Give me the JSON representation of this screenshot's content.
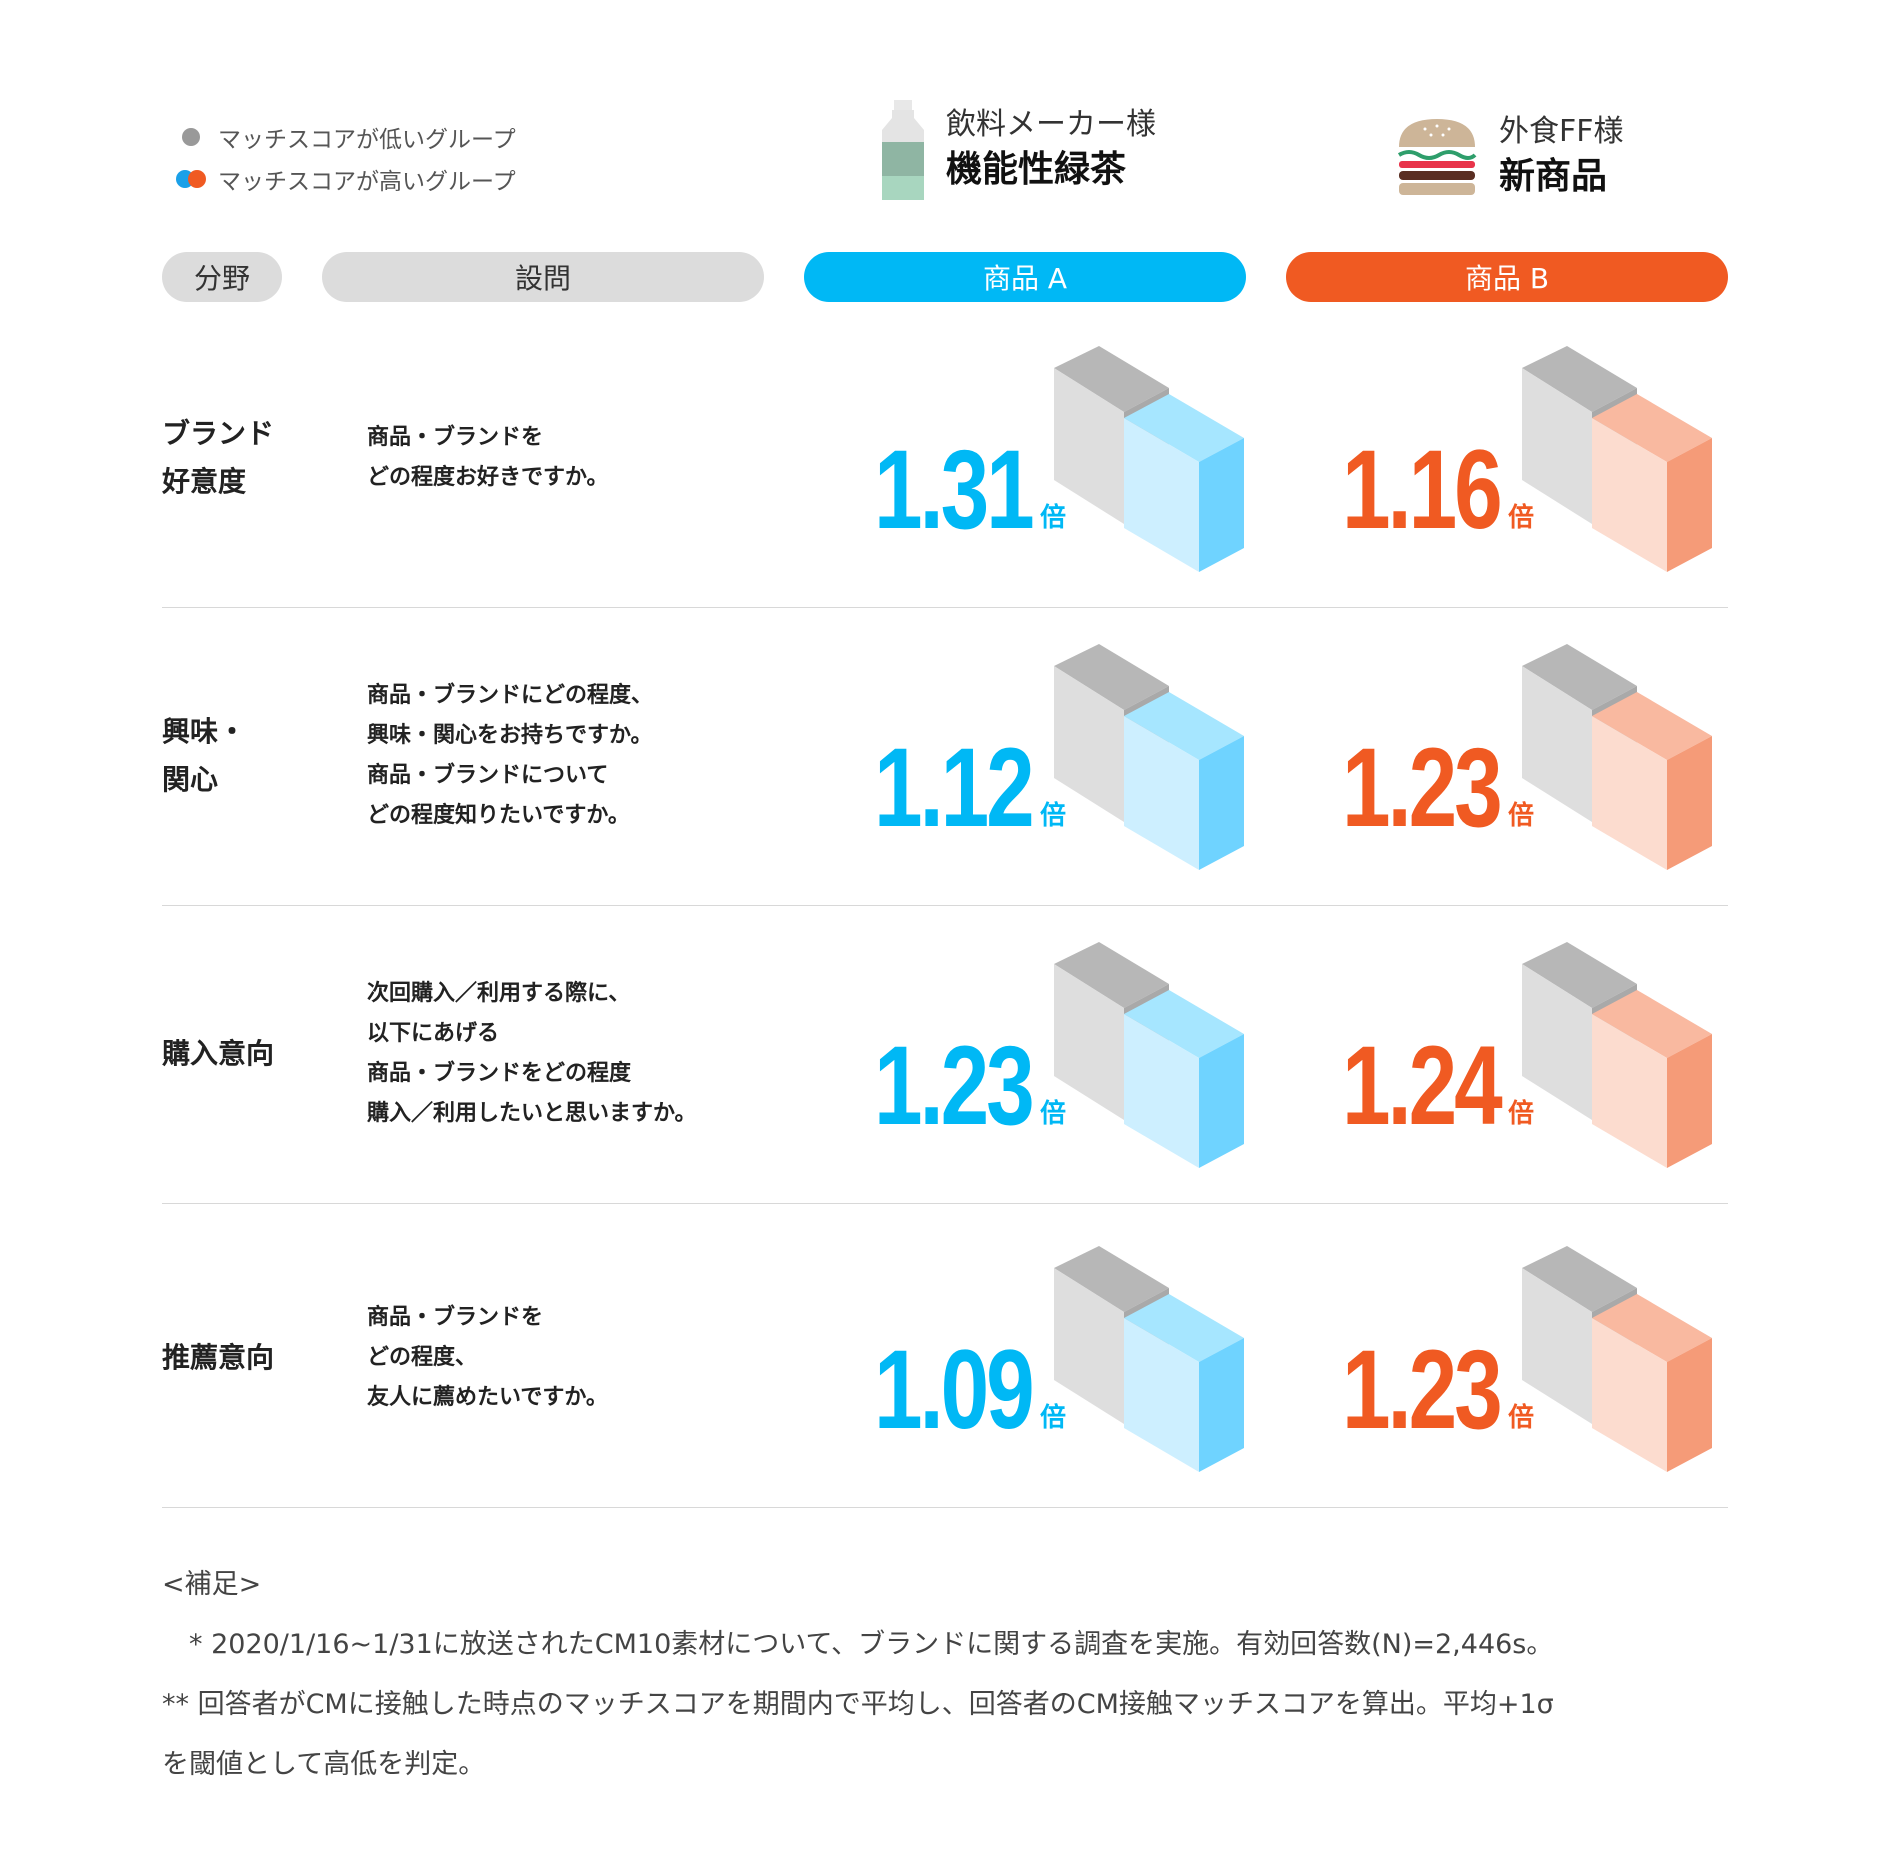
{
  "legend": {
    "low": "マッチスコアが低いグループ",
    "high": "マッチスコアが高いグループ"
  },
  "clients": {
    "a": {
      "company": "飲料メーカー様",
      "product": "機能性緑茶",
      "icon": "bottle-icon"
    },
    "b": {
      "company": "外食FF様",
      "product": "新商品",
      "icon": "burger-icon"
    }
  },
  "header": {
    "field": "分野",
    "question": "設問",
    "product_a": "商品 A",
    "product_b": "商品 B"
  },
  "colors": {
    "product_a": "#00b8f5",
    "product_b": "#f05a22",
    "low_group": "#999999"
  },
  "chart_data": {
    "type": "table",
    "unit": "倍",
    "series": [
      {
        "name": "商品 A",
        "values": [
          1.31,
          1.12,
          1.23,
          1.09
        ]
      },
      {
        "name": "商品 B",
        "values": [
          1.16,
          1.23,
          1.24,
          1.23
        ]
      }
    ],
    "rows": [
      {
        "field": "ブランド\n好意度",
        "question": "商品・ブランドを\nどの程度お好きですか。",
        "a": "1.31",
        "b": "1.16"
      },
      {
        "field": "興味・\n関心",
        "question": "商品・ブランドにどの程度、\n興味・関心をお持ちですか。\n商品・ブランドについて\nどの程度知りたいですか。",
        "a": "1.12",
        "b": "1.23"
      },
      {
        "field": "購入意向",
        "question": "次回購入／利用する際に、\n以下にあげる\n商品・ブランドをどの程度\n購入／利用したいと思いますか。",
        "a": "1.23",
        "b": "1.24"
      },
      {
        "field": "推薦意向",
        "question": "商品・ブランドを\nどの程度、\n友人に薦めたいですか。",
        "a": "1.09",
        "b": "1.23"
      }
    ]
  },
  "notes": {
    "heading": "<補足>",
    "line1": "　* 2020/1/16~1/31に放送されたCM10素材について、ブランドに関する調査を実施。有効回答数(N)=2,446s。",
    "line2": "** 回答者がCMに接触した時点のマッチスコアを期間内で平均し、回答者のCM接触マッチスコアを算出。平均+1σ",
    "line3": "を閾値として高低を判定。"
  }
}
